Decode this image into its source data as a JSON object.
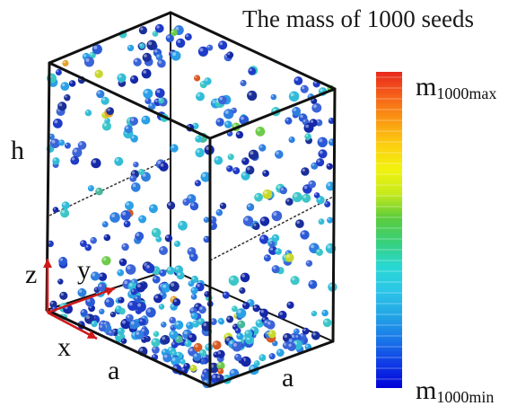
{
  "title": "The mass of 1000 seeds",
  "axis_labels": {
    "h": "h",
    "a_left": "a",
    "a_right": "a",
    "z": "z",
    "y": "y",
    "x": "x"
  },
  "colorbar": {
    "max_main": "m",
    "max_sub": "1000max",
    "min_main": "m",
    "min_sub": "1000min",
    "colors": [
      "#0000d8",
      "#0f3be6",
      "#1a78e8",
      "#23a6e6",
      "#2cc6e8",
      "#28d8d2",
      "#38d07a",
      "#5ccc3c",
      "#c6ea1c",
      "#f2f20e",
      "#fcce10",
      "#fb9a12",
      "#f5621a",
      "#e8281e"
    ]
  },
  "axis_arrow_color": "#d01818"
}
